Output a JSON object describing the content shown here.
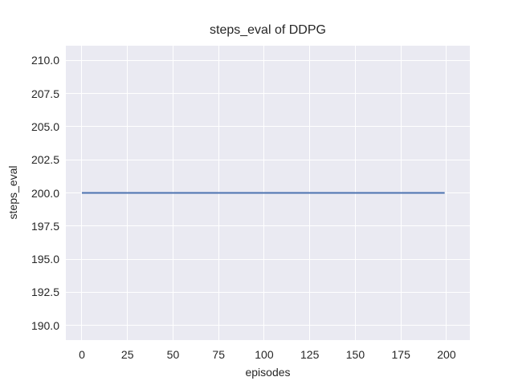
{
  "chart_data": {
    "type": "line",
    "title": "steps_eval of DDPG",
    "xlabel": "episodes",
    "ylabel": "steps_eval",
    "xlim": [
      -8.8,
      212.8
    ],
    "ylim": [
      188.9,
      211.1
    ],
    "xticks": [
      0,
      25,
      50,
      75,
      100,
      125,
      150,
      175,
      200
    ],
    "xtick_labels": [
      "0",
      "25",
      "50",
      "75",
      "100",
      "125",
      "150",
      "175",
      "200"
    ],
    "yticks": [
      190.0,
      192.5,
      195.0,
      197.5,
      200.0,
      202.5,
      205.0,
      207.5,
      210.0
    ],
    "ytick_labels": [
      "190.0",
      "192.5",
      "195.0",
      "197.5",
      "200.0",
      "202.5",
      "205.0",
      "207.5",
      "210.0"
    ],
    "grid": true,
    "legend_position": "none",
    "series": [
      {
        "name": "steps_eval of DDPG",
        "color": "#4c72b0",
        "line_width": 2,
        "x": [
          0,
          199
        ],
        "y": [
          200.0,
          200.0
        ],
        "description": "constant value 200 for episodes 0 through 199"
      }
    ],
    "colors": {
      "figure_background": "#ffffff",
      "plot_background": "#eaeaf2",
      "gridline": "#ffffff",
      "text": "#262626",
      "line": "#4c72b0"
    }
  }
}
